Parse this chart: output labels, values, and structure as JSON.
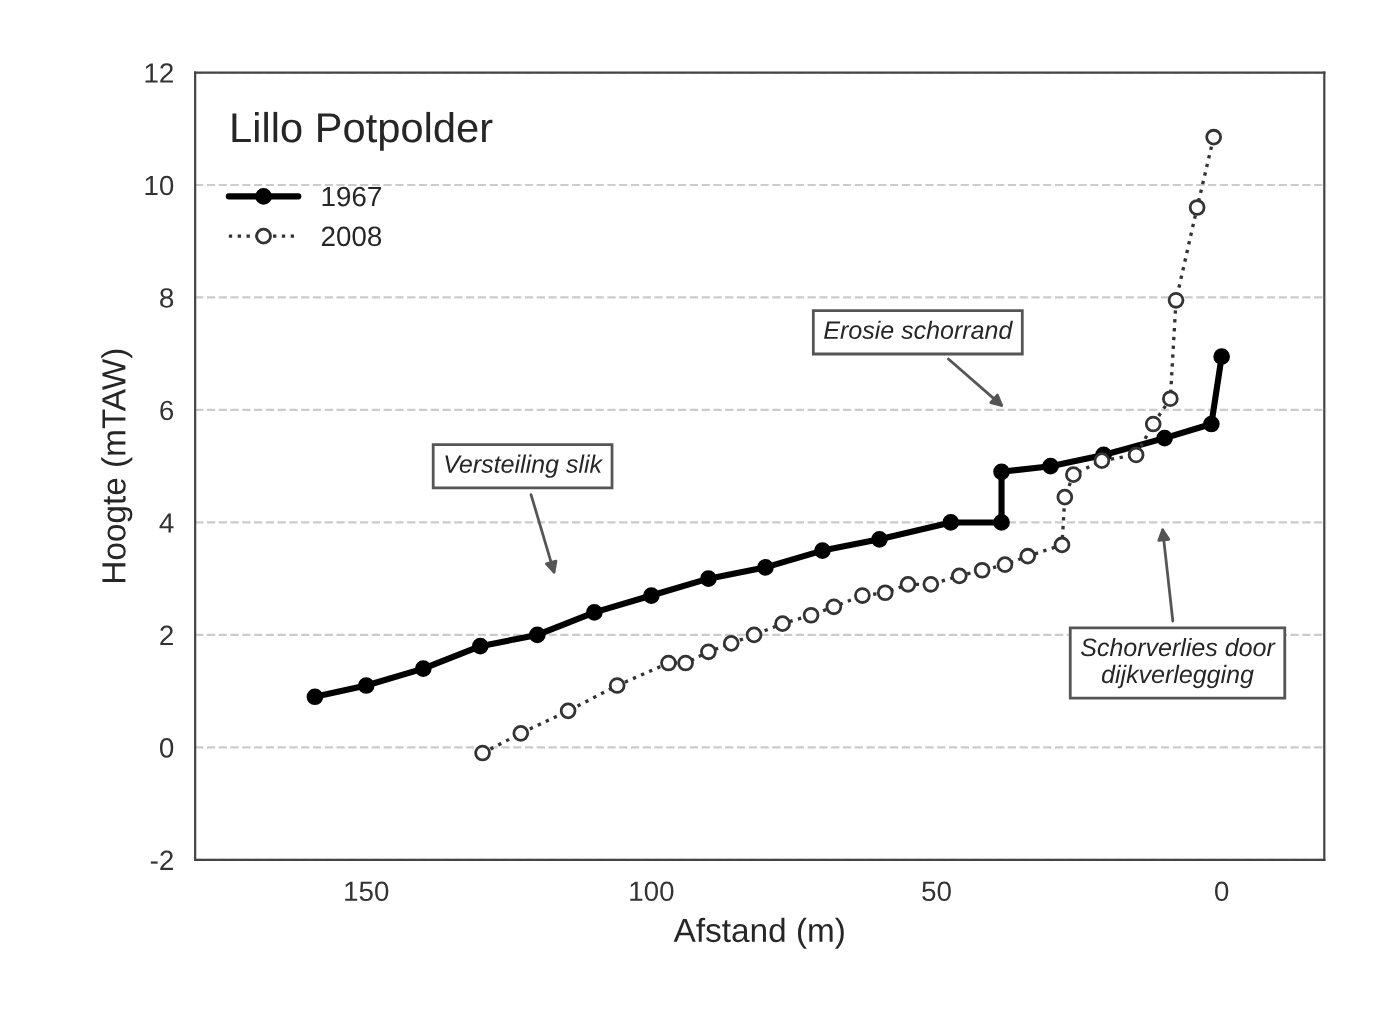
{
  "chart_data": {
    "type": "line",
    "title": "Lillo Potpolder",
    "xlabel": "Afstand (m)",
    "ylabel": "Hoogte (mTAW)",
    "xlim": [
      180,
      -18
    ],
    "xticks": [
      150,
      100,
      50,
      0
    ],
    "ylim": [
      -2,
      12
    ],
    "yticks": [
      -2,
      0,
      2,
      4,
      6,
      8,
      10,
      12
    ],
    "grid": "y",
    "legend": "top left",
    "marker": "circle",
    "series": [
      {
        "name": "1967",
        "color": "#000000",
        "line_style": "solid",
        "x": [
          159,
          150,
          140,
          130,
          120,
          110,
          100,
          90,
          80,
          70,
          60,
          47.5,
          38.6,
          38.6,
          30,
          20.7,
          10,
          1.8,
          0
        ],
        "values": [
          0.9,
          1.1,
          1.4,
          1.8,
          2.0,
          2.4,
          2.7,
          3.0,
          3.2,
          3.5,
          3.7,
          4.0,
          4.0,
          4.9,
          5.0,
          5.2,
          5.5,
          5.75,
          6.95
        ]
      },
      {
        "name": "2008",
        "color": "#333333",
        "line_style": "dotted",
        "x": [
          129.6,
          122.9,
          114.6,
          106,
          97,
          94,
          90,
          86,
          82,
          77,
          72,
          68,
          63,
          59,
          55,
          51,
          46,
          42,
          38,
          34,
          28,
          27.5,
          26,
          21,
          15,
          12,
          9,
          8,
          4.3,
          1.4
        ],
        "values": [
          -0.1,
          0.25,
          0.65,
          1.1,
          1.5,
          1.5,
          1.7,
          1.85,
          2.0,
          2.2,
          2.35,
          2.5,
          2.7,
          2.75,
          2.9,
          2.9,
          3.05,
          3.15,
          3.25,
          3.4,
          3.6,
          4.45,
          4.85,
          5.1,
          5.2,
          5.75,
          6.2,
          7.95,
          9.6,
          10.85
        ]
      }
    ],
    "annotations": [
      "Versteiling slik",
      "Erosie schorrand",
      "Schorverlies door\ndijkverlegging"
    ]
  }
}
